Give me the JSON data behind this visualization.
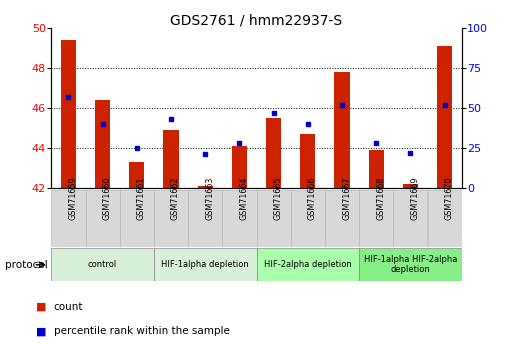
{
  "title": "GDS2761 / hmm22937-S",
  "samples": [
    "GSM71659",
    "GSM71660",
    "GSM71661",
    "GSM71662",
    "GSM71663",
    "GSM71664",
    "GSM71665",
    "GSM71666",
    "GSM71667",
    "GSM71668",
    "GSM71669",
    "GSM71670"
  ],
  "counts": [
    49.4,
    46.4,
    43.3,
    44.9,
    42.1,
    44.1,
    45.5,
    44.7,
    47.8,
    43.9,
    42.2,
    49.1
  ],
  "percentiles": [
    57,
    40,
    25,
    43,
    21,
    28,
    47,
    40,
    52,
    28,
    22,
    52
  ],
  "ylim_left": [
    42,
    50
  ],
  "ylim_right": [
    0,
    100
  ],
  "yticks_left": [
    42,
    44,
    46,
    48,
    50
  ],
  "yticks_right": [
    0,
    25,
    50,
    75,
    100
  ],
  "bar_color": "#cc2200",
  "dot_color": "#0000cc",
  "protocol_groups": [
    {
      "label": "control",
      "start": 0,
      "end": 2,
      "color": "#d8f0d8"
    },
    {
      "label": "HIF-1alpha depletion",
      "start": 3,
      "end": 5,
      "color": "#d8f0d8"
    },
    {
      "label": "HIF-2alpha depletion",
      "start": 6,
      "end": 8,
      "color": "#aaffaa"
    },
    {
      "label": "HIF-1alpha HIF-2alpha\ndepletion",
      "start": 9,
      "end": 11,
      "color": "#88ee88"
    }
  ],
  "legend_count_label": "count",
  "legend_pct_label": "percentile rank within the sample",
  "protocol_label": "protocol",
  "grid_yticks": [
    44,
    46,
    48
  ]
}
